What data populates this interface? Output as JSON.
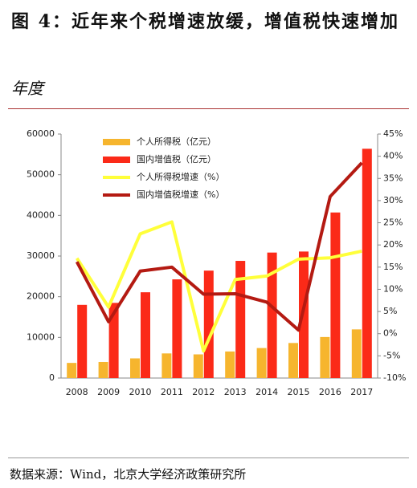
{
  "title": "图 4：近年来个税增速放缓，增值税快速增加",
  "unit": "年度",
  "source": "数据来源：Wind，北京大学经济政策研究所",
  "chart_data": {
    "type": "bar-line",
    "categories": [
      "2008",
      "2009",
      "2010",
      "2011",
      "2012",
      "2013",
      "2014",
      "2015",
      "2016",
      "2017"
    ],
    "series": [
      {
        "name": "个人所得税（亿元）",
        "type": "bar",
        "color": "#f6b52e",
        "values": [
          3722,
          3949,
          4837,
          6054,
          5820,
          6531,
          7377,
          8617,
          10089,
          11966
        ]
      },
      {
        "name": "国内增值税（亿元）",
        "type": "bar",
        "color": "#fb2a18",
        "values": [
          17997,
          18481,
          21093,
          24267,
          26416,
          28810,
          30855,
          31109,
          40712,
          56378
        ]
      },
      {
        "name": "个人所得税增速（%）",
        "type": "line",
        "axis": "y2",
        "color": "#ffff3a",
        "values": [
          17,
          6,
          22.5,
          25.2,
          -3.9,
          12.2,
          13,
          16.8,
          17.1,
          18.6
        ]
      },
      {
        "name": "国内增值税增速（%）",
        "type": "line",
        "axis": "y2",
        "color": "#b41a12",
        "values": [
          16.2,
          2.7,
          14.1,
          15,
          8.9,
          9,
          7.1,
          0.8,
          30.9,
          38.5
        ]
      }
    ],
    "ylim": [
      0,
      60000
    ],
    "yticks": [
      0,
      10000,
      20000,
      30000,
      40000,
      50000,
      60000
    ],
    "y2lim": [
      -10,
      45
    ],
    "y2ticks": [
      {
        "value": -10,
        "label": "-10%"
      },
      {
        "value": -5,
        "label": "-5%"
      },
      {
        "value": 0,
        "label": "0%"
      },
      {
        "value": 5,
        "label": "5%"
      },
      {
        "value": 10,
        "label": "10%"
      },
      {
        "value": 15,
        "label": "15%"
      },
      {
        "value": 20,
        "label": "20%"
      },
      {
        "value": 25,
        "label": "25%"
      },
      {
        "value": 30,
        "label": "30%"
      },
      {
        "value": 35,
        "label": "35%"
      },
      {
        "value": 40,
        "label": "40%"
      },
      {
        "value": 45,
        "label": "45%"
      }
    ]
  }
}
